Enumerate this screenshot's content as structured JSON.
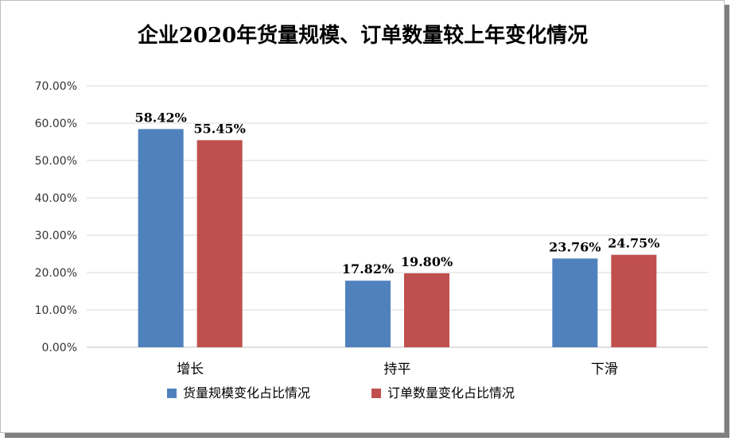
{
  "chart_data": {
    "type": "bar",
    "title": "企业2020年货量规模、订单数量较上年变化情况",
    "categories": [
      "增长",
      "持平",
      "下滑"
    ],
    "series": [
      {
        "name": "货量规模变化占比情况",
        "values": [
          58.42,
          17.82,
          23.76
        ],
        "labels": [
          "58.42%",
          "17.82%",
          "23.76%"
        ],
        "color": "#4f81bd"
      },
      {
        "name": "订单数量变化占比情况",
        "values": [
          55.45,
          19.8,
          24.75
        ],
        "labels": [
          "55.45%",
          "19.80%",
          "24.75%"
        ],
        "color": "#c0504d"
      }
    ],
    "ylim": [
      0,
      70
    ],
    "yticks": [
      "0.00%",
      "10.00%",
      "20.00%",
      "30.00%",
      "40.00%",
      "50.00%",
      "60.00%",
      "70.00%"
    ],
    "ytick_values": [
      0,
      10,
      20,
      30,
      40,
      50,
      60,
      70
    ],
    "grid": true,
    "legend": "bottom"
  }
}
